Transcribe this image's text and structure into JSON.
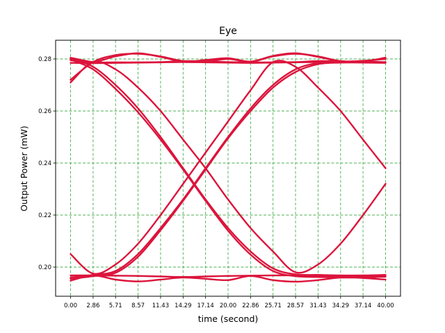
{
  "chart_data": {
    "type": "line",
    "title": "Eye",
    "xlabel": "time (second)",
    "ylabel": "Output Power (mW)",
    "xlim": [
      -1.9,
      41.9
    ],
    "ylim": [
      0.1888,
      0.2872
    ],
    "x_ticks": [
      "0.00",
      "2.86",
      "5.71",
      "8.57",
      "11.43",
      "14.29",
      "17.14",
      "20.00",
      "22.86",
      "25.71",
      "28.57",
      "31.43",
      "34.29",
      "37.14",
      "40.00"
    ],
    "y_ticks": [
      "0.20",
      "0.22",
      "0.24",
      "0.26",
      "0.28"
    ],
    "grid": true,
    "grid_color": "#4caf50",
    "line_color": "#dc143c",
    "series": [
      {
        "x": [
          0,
          2.86,
          5.71,
          8.57,
          11.43,
          14.29,
          17.14,
          20.0,
          22.86,
          25.71,
          28.57,
          31.43,
          34.29,
          37.14,
          40.0
        ],
        "y": [
          0.2805,
          0.2788,
          0.2787,
          0.2787,
          0.2788,
          0.2792,
          0.2791,
          0.2788,
          0.2787,
          0.2787,
          0.2788,
          0.2792,
          0.2791,
          0.2788,
          0.2787
        ]
      },
      {
        "x": [
          0,
          2.86,
          5.71,
          8.57,
          11.43,
          14.29,
          17.14,
          20.0,
          22.86,
          25.71,
          28.57,
          31.43,
          34.29,
          37.14,
          40.0
        ],
        "y": [
          0.2785,
          0.2784,
          0.2785,
          0.2786,
          0.2787,
          0.2788,
          0.2787,
          0.2786,
          0.2785,
          0.2786,
          0.2787,
          0.2788,
          0.2787,
          0.2786,
          0.2785
        ]
      },
      {
        "x": [
          0,
          2.86,
          5.71,
          8.57,
          11.43,
          14.29,
          17.14,
          20.0,
          22.86,
          25.71,
          28.57,
          31.43,
          34.29,
          37.14,
          40.0
        ],
        "y": [
          0.2795,
          0.2788,
          0.281,
          0.2822,
          0.2808,
          0.279,
          0.2796,
          0.2803,
          0.279,
          0.2812,
          0.2822,
          0.2808,
          0.2791,
          0.2793,
          0.28
        ]
      },
      {
        "x": [
          0,
          2.86,
          5.71,
          8.57,
          11.43,
          14.29,
          17.14,
          20.0,
          22.86,
          25.71,
          28.57,
          31.43,
          34.29,
          37.14,
          40.0
        ],
        "y": [
          0.272,
          0.2788,
          0.2815,
          0.282,
          0.281,
          0.2792,
          0.279,
          0.28,
          0.2789,
          0.281,
          0.282,
          0.281,
          0.2792,
          0.2791,
          0.2805
        ]
      },
      {
        "x": [
          0,
          2.86,
          5.71,
          8.57,
          11.43,
          14.29,
          17.14,
          20.0,
          22.86,
          25.71,
          28.57,
          31.43,
          34.29,
          37.14,
          40.0
        ],
        "y": [
          0.2802,
          0.277,
          0.27,
          0.261,
          0.25,
          0.238,
          0.226,
          0.215,
          0.206,
          0.1995,
          0.1972,
          0.197,
          0.1968,
          0.1968,
          0.197
        ]
      },
      {
        "x": [
          0,
          2.86,
          5.71,
          8.57,
          11.43,
          14.29,
          17.14,
          20.0,
          22.86,
          25.71,
          28.57,
          31.43,
          34.29,
          37.14,
          40.0
        ],
        "y": [
          0.2798,
          0.276,
          0.2685,
          0.2595,
          0.249,
          0.2375,
          0.2255,
          0.214,
          0.2048,
          0.1985,
          0.1965,
          0.1962,
          0.196,
          0.1961,
          0.1963
        ]
      },
      {
        "x": [
          0,
          2.86,
          5.71,
          8.57,
          11.43,
          14.29,
          17.14,
          20.0,
          22.86,
          25.71,
          28.57,
          31.43,
          34.29,
          37.14,
          40.0
        ],
        "y": [
          0.196,
          0.197,
          0.1985,
          0.205,
          0.215,
          0.226,
          0.238,
          0.25,
          0.261,
          0.27,
          0.276,
          0.2785,
          0.279,
          0.279,
          0.2788
        ]
      },
      {
        "x": [
          0,
          2.86,
          5.71,
          8.57,
          11.43,
          14.29,
          17.14,
          20.0,
          22.86,
          25.71,
          28.57,
          31.43,
          34.29,
          37.14,
          40.0
        ],
        "y": [
          0.1955,
          0.1965,
          0.1978,
          0.204,
          0.2142,
          0.2255,
          0.2375,
          0.2495,
          0.26,
          0.269,
          0.275,
          0.278,
          0.2786,
          0.2787,
          0.2786
        ]
      },
      {
        "x": [
          0,
          2.86,
          5.71,
          8.57,
          11.43,
          14.29,
          17.14,
          20.0,
          22.86,
          25.71,
          28.57,
          31.43,
          34.29,
          37.14,
          40.0
        ],
        "y": [
          0.205,
          0.1975,
          0.201,
          0.209,
          0.22,
          0.232,
          0.244,
          0.256,
          0.268,
          0.2788,
          0.277,
          0.269,
          0.26,
          0.249,
          0.238
        ]
      },
      {
        "x": [
          0,
          2.86,
          5.71,
          8.57,
          11.43,
          14.29,
          17.14,
          20.0,
          22.86,
          25.71,
          28.57,
          31.43,
          34.29,
          37.14,
          40.0
        ],
        "y": [
          0.271,
          0.2788,
          0.276,
          0.269,
          0.26,
          0.249,
          0.238,
          0.226,
          0.215,
          0.206,
          0.198,
          0.201,
          0.209,
          0.22,
          0.232
        ]
      },
      {
        "x": [
          0,
          2.86,
          5.71,
          8.57,
          11.43,
          14.29,
          17.14,
          20.0,
          22.86,
          25.71,
          28.57,
          31.43,
          34.29,
          37.14,
          40.0
        ],
        "y": [
          0.1968,
          0.1968,
          0.1967,
          0.1966,
          0.1964,
          0.1962,
          0.1964,
          0.1966,
          0.1967,
          0.1968,
          0.1968,
          0.1967,
          0.1964,
          0.1963,
          0.1965
        ]
      },
      {
        "x": [
          0,
          2.86,
          5.71,
          8.57,
          11.43,
          14.29,
          17.14,
          20.0,
          22.86,
          25.71,
          28.57,
          31.43,
          34.29,
          37.14,
          40.0
        ],
        "y": [
          0.1948,
          0.1968,
          0.1952,
          0.1945,
          0.1952,
          0.196,
          0.1955,
          0.195,
          0.1966,
          0.195,
          0.1944,
          0.195,
          0.196,
          0.1958,
          0.1952
        ]
      }
    ]
  }
}
